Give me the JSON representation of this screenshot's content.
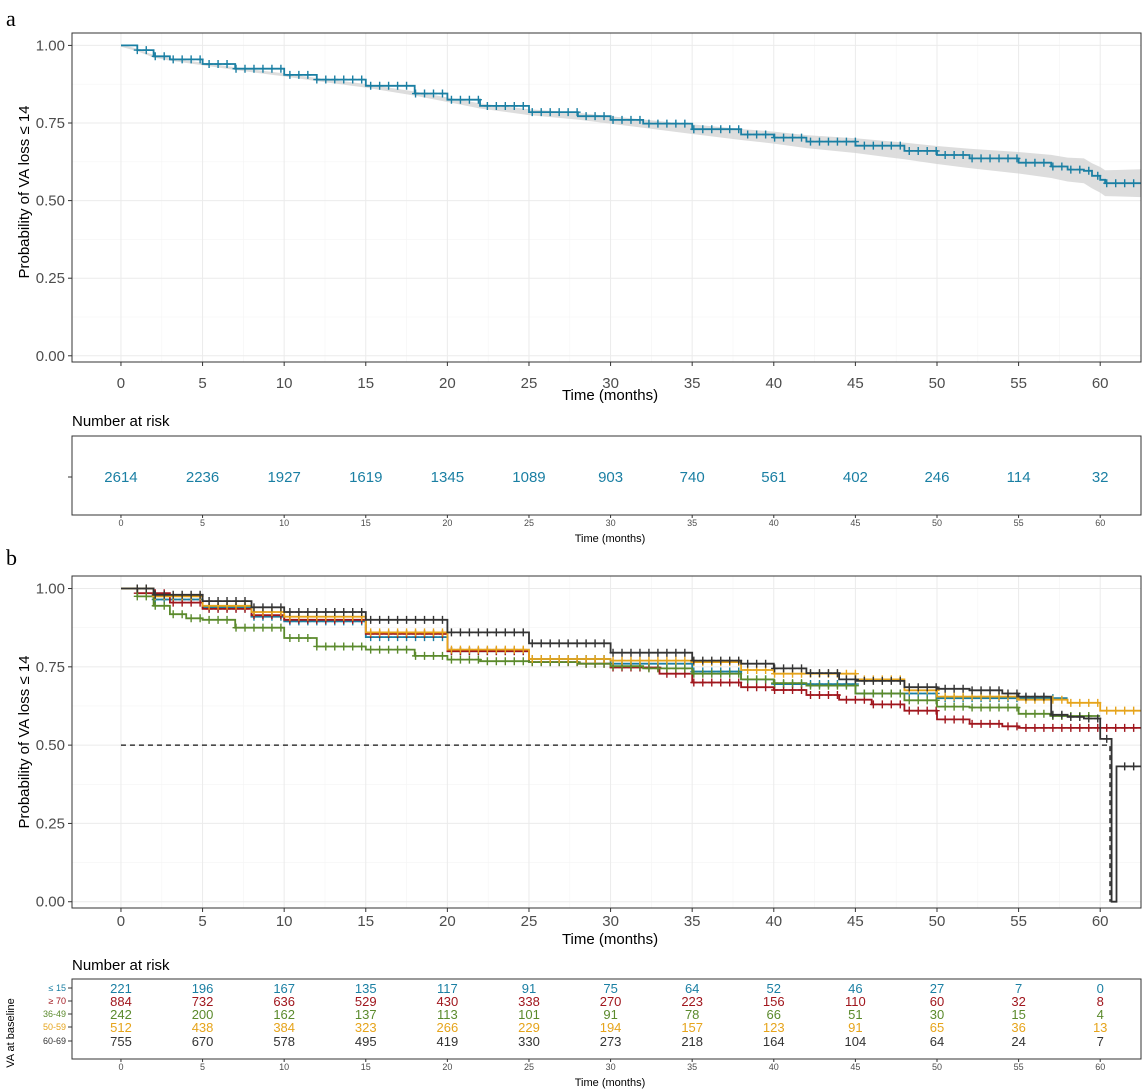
{
  "chart_data": [
    {
      "panel": "a",
      "type": "line",
      "xlabel": "Time (months)",
      "ylabel": "Probability of VA loss ≤ 14",
      "xlim": [
        -3,
        62.5
      ],
      "ylim": [
        -0.02,
        1.04
      ],
      "x_ticks": [
        "0",
        "5",
        "10",
        "15",
        "20",
        "25",
        "30",
        "35",
        "40",
        "45",
        "50",
        "55",
        "60"
      ],
      "y_ticks": [
        "0.00",
        "0.25",
        "0.50",
        "0.75",
        "1.00"
      ],
      "grid": true,
      "confidence_band": true,
      "series": [
        {
          "color": "#1a7fa3",
          "x": [
            0,
            1,
            2,
            3,
            5,
            7,
            10,
            12,
            15,
            18,
            20,
            22,
            25,
            28,
            30,
            32,
            35,
            38,
            40,
            42,
            45,
            48,
            50,
            52,
            55,
            57,
            58,
            59,
            59.5,
            60,
            60.3,
            61,
            62.5
          ],
          "y": [
            1.0,
            0.985,
            0.965,
            0.955,
            0.94,
            0.925,
            0.905,
            0.89,
            0.87,
            0.845,
            0.825,
            0.805,
            0.785,
            0.772,
            0.76,
            0.748,
            0.73,
            0.713,
            0.703,
            0.69,
            0.677,
            0.66,
            0.647,
            0.636,
            0.622,
            0.61,
            0.6,
            0.596,
            0.58,
            0.567,
            0.556,
            0.556,
            0.556
          ]
        }
      ],
      "risk_table": {
        "title": "Number at risk",
        "times": [
          "0",
          "5",
          "10",
          "15",
          "20",
          "25",
          "30",
          "35",
          "40",
          "45",
          "50",
          "55",
          "60"
        ],
        "xlabel": "Time (months)",
        "rows": [
          {
            "color": "#1a7fa3",
            "values": [
              "2614",
              "2236",
              "1927",
              "1619",
              "1345",
              "1089",
              "903",
              "740",
              "561",
              "402",
              "246",
              "114",
              "32"
            ]
          }
        ]
      }
    },
    {
      "panel": "b",
      "type": "line",
      "xlabel": "Time (months)",
      "ylabel": "Probability of VA loss ≤ 14",
      "xlim": [
        -3,
        62.5
      ],
      "ylim": [
        -0.02,
        1.04
      ],
      "x_ticks": [
        "0",
        "5",
        "10",
        "15",
        "20",
        "25",
        "30",
        "35",
        "40",
        "45",
        "50",
        "55",
        "60"
      ],
      "y_ticks": [
        "0.00",
        "0.25",
        "0.50",
        "0.75",
        "1.00"
      ],
      "grid": true,
      "reference_line": 0.5,
      "series": [
        {
          "name": "≤ 15",
          "color": "#1a7fa3",
          "x": [
            0,
            2,
            5,
            8,
            10,
            15,
            20,
            25,
            30,
            35,
            38,
            40,
            45,
            50,
            55,
            58
          ],
          "y": [
            1.0,
            0.965,
            0.94,
            0.91,
            0.895,
            0.845,
            0.8,
            0.775,
            0.76,
            0.735,
            0.71,
            0.695,
            0.665,
            0.65,
            0.65,
            0.65
          ]
        },
        {
          "name": "≥ 70",
          "color": "#a0161d",
          "x": [
            0,
            1,
            3,
            5,
            8,
            10,
            15,
            20,
            25,
            28,
            30,
            33,
            35,
            38,
            40,
            42,
            44,
            46,
            48,
            50,
            52,
            54,
            55,
            58,
            60,
            62.5
          ],
          "y": [
            1.0,
            0.985,
            0.955,
            0.935,
            0.915,
            0.9,
            0.855,
            0.8,
            0.765,
            0.76,
            0.748,
            0.728,
            0.7,
            0.685,
            0.676,
            0.66,
            0.645,
            0.63,
            0.61,
            0.582,
            0.568,
            0.56,
            0.555,
            0.555,
            0.555,
            0.555
          ]
        },
        {
          "name": "36-49",
          "color": "#5b8a2c",
          "x": [
            0,
            1,
            2,
            3,
            4,
            5,
            7,
            10,
            12,
            15,
            18,
            20,
            22,
            25,
            28,
            30,
            32,
            35,
            38,
            40,
            42,
            45,
            48,
            50,
            52,
            55,
            57,
            60
          ],
          "y": [
            1.0,
            0.975,
            0.945,
            0.918,
            0.905,
            0.9,
            0.875,
            0.842,
            0.815,
            0.805,
            0.785,
            0.773,
            0.768,
            0.765,
            0.76,
            0.752,
            0.745,
            0.728,
            0.71,
            0.698,
            0.69,
            0.665,
            0.643,
            0.623,
            0.62,
            0.6,
            0.593,
            0.593
          ]
        },
        {
          "name": "50-59",
          "color": "#e6a41b",
          "x": [
            0,
            2,
            5,
            8,
            10,
            15,
            20,
            25,
            30,
            35,
            38,
            40,
            45,
            48,
            50,
            55,
            58,
            60,
            62.5
          ],
          "y": [
            1.0,
            0.975,
            0.945,
            0.925,
            0.91,
            0.86,
            0.805,
            0.775,
            0.77,
            0.765,
            0.74,
            0.728,
            0.71,
            0.675,
            0.655,
            0.645,
            0.635,
            0.61,
            0.61
          ]
        },
        {
          "name": "60-69",
          "color": "#333333",
          "x": [
            0,
            2,
            5,
            8,
            10,
            15,
            20,
            25,
            30,
            35,
            38,
            40,
            42,
            44,
            45,
            48,
            50,
            52,
            54,
            55,
            57,
            58,
            59,
            60,
            60.4,
            60.7,
            61,
            62.5
          ],
          "y": [
            1.0,
            0.98,
            0.96,
            0.94,
            0.925,
            0.9,
            0.86,
            0.825,
            0.795,
            0.77,
            0.76,
            0.745,
            0.73,
            0.71,
            0.705,
            0.685,
            0.68,
            0.675,
            0.665,
            0.655,
            0.597,
            0.59,
            0.585,
            0.52,
            0.52,
            0.0,
            0.432,
            0.432
          ]
        }
      ],
      "risk_table": {
        "title": "Number at risk",
        "ylabel": "VA at baseline",
        "xlabel": "Time (months)",
        "times": [
          "0",
          "5",
          "10",
          "15",
          "20",
          "25",
          "30",
          "35",
          "40",
          "45",
          "50",
          "55",
          "60"
        ],
        "rows": [
          {
            "label": "≤ 15",
            "color": "#1a7fa3",
            "values": [
              "221",
              "196",
              "167",
              "135",
              "117",
              "91",
              "75",
              "64",
              "52",
              "46",
              "27",
              "7",
              "0"
            ]
          },
          {
            "label": "≥ 70",
            "color": "#a0161d",
            "values": [
              "884",
              "732",
              "636",
              "529",
              "430",
              "338",
              "270",
              "223",
              "156",
              "110",
              "60",
              "32",
              "8"
            ]
          },
          {
            "label": "36-49",
            "color": "#5b8a2c",
            "values": [
              "242",
              "200",
              "162",
              "137",
              "113",
              "101",
              "91",
              "78",
              "66",
              "51",
              "30",
              "15",
              "4"
            ]
          },
          {
            "label": "50-59",
            "color": "#e6a41b",
            "values": [
              "512",
              "438",
              "384",
              "323",
              "266",
              "229",
              "194",
              "157",
              "123",
              "91",
              "65",
              "36",
              "13"
            ]
          },
          {
            "label": "60-69",
            "color": "#333333",
            "values": [
              "755",
              "670",
              "578",
              "495",
              "419",
              "330",
              "273",
              "218",
              "164",
              "104",
              "64",
              "24",
              "7"
            ]
          }
        ]
      }
    }
  ]
}
